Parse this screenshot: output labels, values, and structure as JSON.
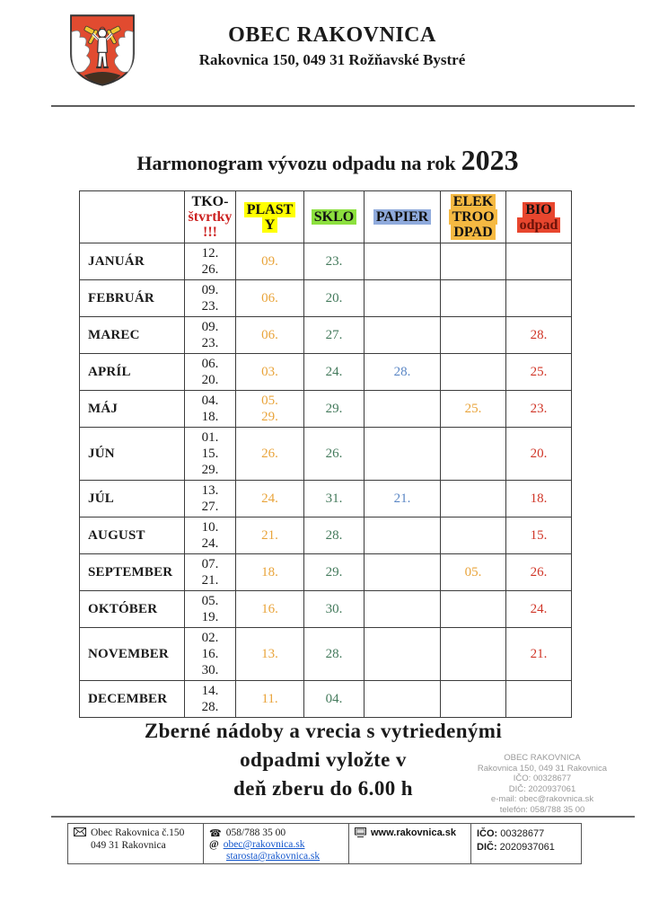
{
  "header": {
    "org_name": "OBEC RAKOVNICA",
    "org_address": "Rakovnica 150,  049 31  Rožňavské Bystré"
  },
  "title": {
    "text": "Harmonogram vývozu odpadu na rok",
    "year": "2023"
  },
  "table": {
    "columns": [
      {
        "id": "month",
        "label_lines": [],
        "highlight": null,
        "value_color": "#1a1a1a"
      },
      {
        "id": "tko",
        "label_lines": [
          "TKO-",
          "štvrtky",
          "!!!"
        ],
        "label_line_colors": [
          "#111111",
          "#cc2120",
          "#cc2120"
        ],
        "highlight": null,
        "value_color": "#1a1a1a"
      },
      {
        "id": "plasty",
        "label_lines": [
          "PLAST",
          "Y"
        ],
        "label_line_colors": [
          "#111111",
          "#111111"
        ],
        "highlight": "#ffff00",
        "value_color": "#e9a43b"
      },
      {
        "id": "sklo",
        "label_lines": [
          "SKLO"
        ],
        "label_line_colors": [
          "#111111"
        ],
        "highlight": "#8ce03e",
        "value_color": "#447a5c"
      },
      {
        "id": "papier",
        "label_lines": [
          "PAPIER"
        ],
        "label_line_colors": [
          "#111111"
        ],
        "highlight": "#8faadc",
        "value_color": "#5b87c5"
      },
      {
        "id": "elektroodpad",
        "label_lines": [
          "ELEK",
          "TROO",
          "DPAD"
        ],
        "label_line_colors": [
          "#111111",
          "#111111",
          "#111111"
        ],
        "highlight": "#f5b942",
        "value_color": "#e9a43b"
      },
      {
        "id": "bio",
        "label_lines": [
          "BIO",
          "odpad"
        ],
        "label_line_colors": [
          "#111111",
          "#6b1208"
        ],
        "highlight": "#e8462e",
        "value_color": "#d03527"
      }
    ],
    "rows": [
      {
        "month": "JANUÁR",
        "tko": [
          "12.",
          "26."
        ],
        "plasty": [
          "09."
        ],
        "sklo": [
          "23."
        ],
        "papier": [],
        "elektroodpad": [],
        "bio": []
      },
      {
        "month": "FEBRUÁR",
        "tko": [
          "09.",
          "23."
        ],
        "plasty": [
          "06."
        ],
        "sklo": [
          "20."
        ],
        "papier": [],
        "elektroodpad": [],
        "bio": []
      },
      {
        "month": "MAREC",
        "tko": [
          "09.",
          "23."
        ],
        "plasty": [
          "06."
        ],
        "sklo": [
          "27."
        ],
        "papier": [],
        "elektroodpad": [],
        "bio": [
          "28."
        ]
      },
      {
        "month": "APRÍL",
        "tko": [
          "06.",
          "20."
        ],
        "plasty": [
          "03."
        ],
        "sklo": [
          "24."
        ],
        "papier": [
          "28."
        ],
        "elektroodpad": [],
        "bio": [
          "25."
        ]
      },
      {
        "month": "MÁJ",
        "tko": [
          "04.",
          "18."
        ],
        "plasty": [
          "05.",
          "29."
        ],
        "sklo": [
          "29."
        ],
        "papier": [],
        "elektroodpad": [
          "25."
        ],
        "bio": [
          "23."
        ]
      },
      {
        "month": "JÚN",
        "tko": [
          "01.",
          "15.",
          "29."
        ],
        "plasty": [
          "26."
        ],
        "sklo": [
          "26."
        ],
        "papier": [],
        "elektroodpad": [],
        "bio": [
          "20."
        ]
      },
      {
        "month": "JÚL",
        "tko": [
          "13.",
          "27."
        ],
        "plasty": [
          "24."
        ],
        "sklo": [
          "31."
        ],
        "papier": [
          "21."
        ],
        "elektroodpad": [],
        "bio": [
          "18."
        ]
      },
      {
        "month": "AUGUST",
        "tko": [
          "10.",
          "24."
        ],
        "plasty": [
          "21."
        ],
        "sklo": [
          "28."
        ],
        "papier": [],
        "elektroodpad": [],
        "bio": [
          "15."
        ]
      },
      {
        "month": "SEPTEMBER",
        "tko": [
          "07.",
          "21."
        ],
        "plasty": [
          "18."
        ],
        "sklo": [
          "29."
        ],
        "papier": [],
        "elektroodpad": [
          "05."
        ],
        "bio": [
          "26."
        ]
      },
      {
        "month": "OKTÓBER",
        "tko": [
          "05.",
          "19."
        ],
        "plasty": [
          "16."
        ],
        "sklo": [
          "30."
        ],
        "papier": [],
        "elektroodpad": [],
        "bio": [
          "24."
        ]
      },
      {
        "month": "NOVEMBER",
        "tko": [
          "02.",
          "16.",
          "30."
        ],
        "plasty": [
          "13."
        ],
        "sklo": [
          "28."
        ],
        "papier": [],
        "elektroodpad": [],
        "bio": [
          "21."
        ]
      },
      {
        "month": "DECEMBER",
        "tko": [
          "14.",
          "28."
        ],
        "plasty": [
          "11."
        ],
        "sklo": [
          "04."
        ],
        "papier": [],
        "elektroodpad": [],
        "bio": []
      }
    ]
  },
  "notice": {
    "lines": [
      "Zberné nádoby a vrecia s vytriedenými",
      "odpadmi vyložte v",
      "deň zberu do 6.00 h"
    ]
  },
  "stamp": {
    "lines": [
      "OBEC RAKOVNICA",
      "Rakovnica 150, 049 31 Rakovnica",
      "IČO: 00328677",
      "DIČ: 2020937061",
      "e-mail: obec@rakovnica.sk",
      "telefón: 058/788 35 00"
    ]
  },
  "footer": {
    "address_line1": "Obec Rakovnica č.150",
    "address_line2": "049 31 Rakovnica",
    "phone": "058/788 35 00",
    "email1": "obec@rakovnica.sk",
    "email2": "starosta@rakovnica.sk",
    "website": "www.rakovnica.sk",
    "ico_label": "IČO:",
    "ico_value": "00328677",
    "dic_label": "DIČ:",
    "dic_value": "2020937061"
  },
  "colors": {
    "highlight_plasty": "#ffff00",
    "highlight_sklo": "#8ce03e",
    "highlight_papier": "#8faadc",
    "highlight_elektroodpad": "#f5b942",
    "highlight_bio": "#e8462e",
    "tko_warning_red": "#cc2120",
    "link_blue": "#1155cc",
    "shield_red": "#e14b30"
  }
}
